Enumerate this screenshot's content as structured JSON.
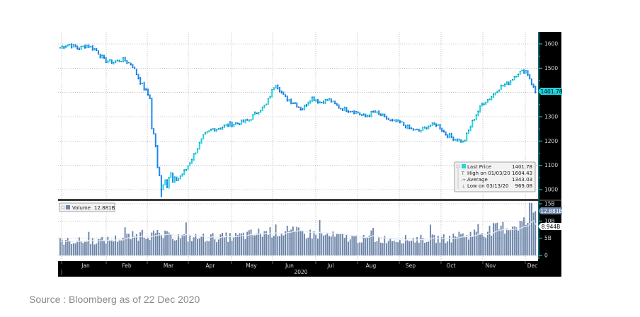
{
  "chart_data": [
    {
      "type": "candlestick",
      "title": "",
      "xlabel": "2020",
      "ylabel": "",
      "ylim": [
        965,
        1650
      ],
      "grid": true,
      "months": [
        "Jan",
        "Feb",
        "Mar",
        "Apr",
        "May",
        "Jun",
        "Jul",
        "Aug",
        "Sep",
        "Oct",
        "Nov",
        "Dec"
      ],
      "year_label": "2020",
      "yticks": [
        1000,
        1100,
        1200,
        1300,
        1400,
        1500,
        1600
      ],
      "up_color": "#1fd5e0",
      "down_color": "#1e88f0",
      "last_price_label": "1401.78",
      "legend": {
        "position": "lower-right",
        "entries": [
          {
            "label": "Last Price",
            "value": "1401.78"
          },
          {
            "label": "High on 01/03/20",
            "value": "1604.43"
          },
          {
            "label": "Average",
            "value": "1343.03"
          },
          {
            "label": "Low on 03/13/20",
            "value": "969.08"
          }
        ]
      },
      "approx_close_path": [
        {
          "x": "Jan 02",
          "y": 1585
        },
        {
          "x": "Jan 03",
          "y": 1600
        },
        {
          "x": "Jan 10",
          "y": 1580
        },
        {
          "x": "Jan 17",
          "y": 1595
        },
        {
          "x": "Jan 24",
          "y": 1575
        },
        {
          "x": "Jan 31",
          "y": 1530
        },
        {
          "x": "Feb 07",
          "y": 1525
        },
        {
          "x": "Feb 14",
          "y": 1535
        },
        {
          "x": "Feb 21",
          "y": 1515
        },
        {
          "x": "Feb 28",
          "y": 1440
        },
        {
          "x": "Mar 06",
          "y": 1380
        },
        {
          "x": "Mar 09",
          "y": 1290
        },
        {
          "x": "Mar 13",
          "y": 1060
        },
        {
          "x": "Mar 20",
          "y": 1040
        },
        {
          "x": "Mar 27",
          "y": 1080
        },
        {
          "x": "Apr 03",
          "y": 1150
        },
        {
          "x": "Apr 10",
          "y": 1220
        },
        {
          "x": "Apr 17",
          "y": 1250
        },
        {
          "x": "Apr 24",
          "y": 1255
        },
        {
          "x": "May 01",
          "y": 1270
        },
        {
          "x": "May 08",
          "y": 1275
        },
        {
          "x": "May 15",
          "y": 1285
        },
        {
          "x": "May 22",
          "y": 1320
        },
        {
          "x": "May 29",
          "y": 1350
        },
        {
          "x": "Jun 05",
          "y": 1440
        },
        {
          "x": "Jun 12",
          "y": 1380
        },
        {
          "x": "Jun 19",
          "y": 1360
        },
        {
          "x": "Jun 26",
          "y": 1330
        },
        {
          "x": "Jul 03",
          "y": 1380
        },
        {
          "x": "Jul 10",
          "y": 1360
        },
        {
          "x": "Jul 17",
          "y": 1370
        },
        {
          "x": "Jul 24",
          "y": 1340
        },
        {
          "x": "Jul 31",
          "y": 1330
        },
        {
          "x": "Aug 07",
          "y": 1320
        },
        {
          "x": "Aug 14",
          "y": 1300
        },
        {
          "x": "Aug 21",
          "y": 1320
        },
        {
          "x": "Aug 28",
          "y": 1300
        },
        {
          "x": "Sep 04",
          "y": 1280
        },
        {
          "x": "Sep 11",
          "y": 1275
        },
        {
          "x": "Sep 18",
          "y": 1250
        },
        {
          "x": "Sep 25",
          "y": 1240
        },
        {
          "x": "Oct 02",
          "y": 1260
        },
        {
          "x": "Oct 09",
          "y": 1270
        },
        {
          "x": "Oct 16",
          "y": 1230
        },
        {
          "x": "Oct 23",
          "y": 1210
        },
        {
          "x": "Oct 30",
          "y": 1195
        },
        {
          "x": "Nov 06",
          "y": 1280
        },
        {
          "x": "Nov 13",
          "y": 1350
        },
        {
          "x": "Nov 20",
          "y": 1380
        },
        {
          "x": "Nov 27",
          "y": 1420
        },
        {
          "x": "Dec 04",
          "y": 1440
        },
        {
          "x": "Dec 11",
          "y": 1480
        },
        {
          "x": "Dec 18",
          "y": 1490
        },
        {
          "x": "Dec 22",
          "y": 1401.78
        }
      ]
    },
    {
      "type": "bar",
      "title": "Volume",
      "legend": {
        "label": "Volume",
        "value": "12.881B"
      },
      "yticks": [
        "0",
        "5B",
        "10B",
        "15B"
      ],
      "ylim": [
        0,
        15.5
      ],
      "units": "billions",
      "bar_color": "#6b84a8",
      "moving_average_label": "8.944B",
      "last_volume_label": "12.881B",
      "approx_monthly_avg_volume": [
        {
          "x": "Jan",
          "y": 4.0
        },
        {
          "x": "Feb",
          "y": 4.2
        },
        {
          "x": "Mar",
          "y": 6.0
        },
        {
          "x": "Apr",
          "y": 5.0
        },
        {
          "x": "May",
          "y": 5.2
        },
        {
          "x": "Jun",
          "y": 7.0
        },
        {
          "x": "Jul",
          "y": 5.8
        },
        {
          "x": "Aug",
          "y": 4.6
        },
        {
          "x": "Sep",
          "y": 4.6
        },
        {
          "x": "Oct",
          "y": 4.8
        },
        {
          "x": "Nov",
          "y": 7.2
        },
        {
          "x": "Dec",
          "y": 10.0
        }
      ]
    }
  ],
  "axis": {
    "price_ticks": [
      "1600",
      "1500",
      "1300",
      "1200",
      "1100",
      "1000"
    ],
    "last_price_tag": "1401.78",
    "volume_ticks": [
      "15B",
      "10B",
      "5B",
      "0"
    ],
    "volume_last_tag": "12.881B",
    "volume_ma_tag": "8.944B",
    "months": [
      "Jan",
      "Feb",
      "Mar",
      "Apr",
      "May",
      "Jun",
      "Jul",
      "Aug",
      "Sep",
      "Oct",
      "Nov",
      "Dec"
    ],
    "year": "2020"
  },
  "legend": {
    "last_price_label": "Last Price",
    "last_price_value": "1401.78",
    "high_label": "High on 01/03/20",
    "high_value": "1604.43",
    "average_label": "Average",
    "average_value": "1343.03",
    "low_label": "Low on 03/13/20",
    "low_value": "969.08"
  },
  "volume_legend": {
    "label": "Volume",
    "value": "12.881B"
  },
  "colors": {
    "up": "#1fd5e0",
    "down": "#1e88f0",
    "volume": "#6b84a8",
    "axis_bg": "#000000",
    "tag_bg": "#1fd5e0"
  },
  "footer": {
    "source": "Source : Bloomberg as of 22 Dec 2020"
  }
}
